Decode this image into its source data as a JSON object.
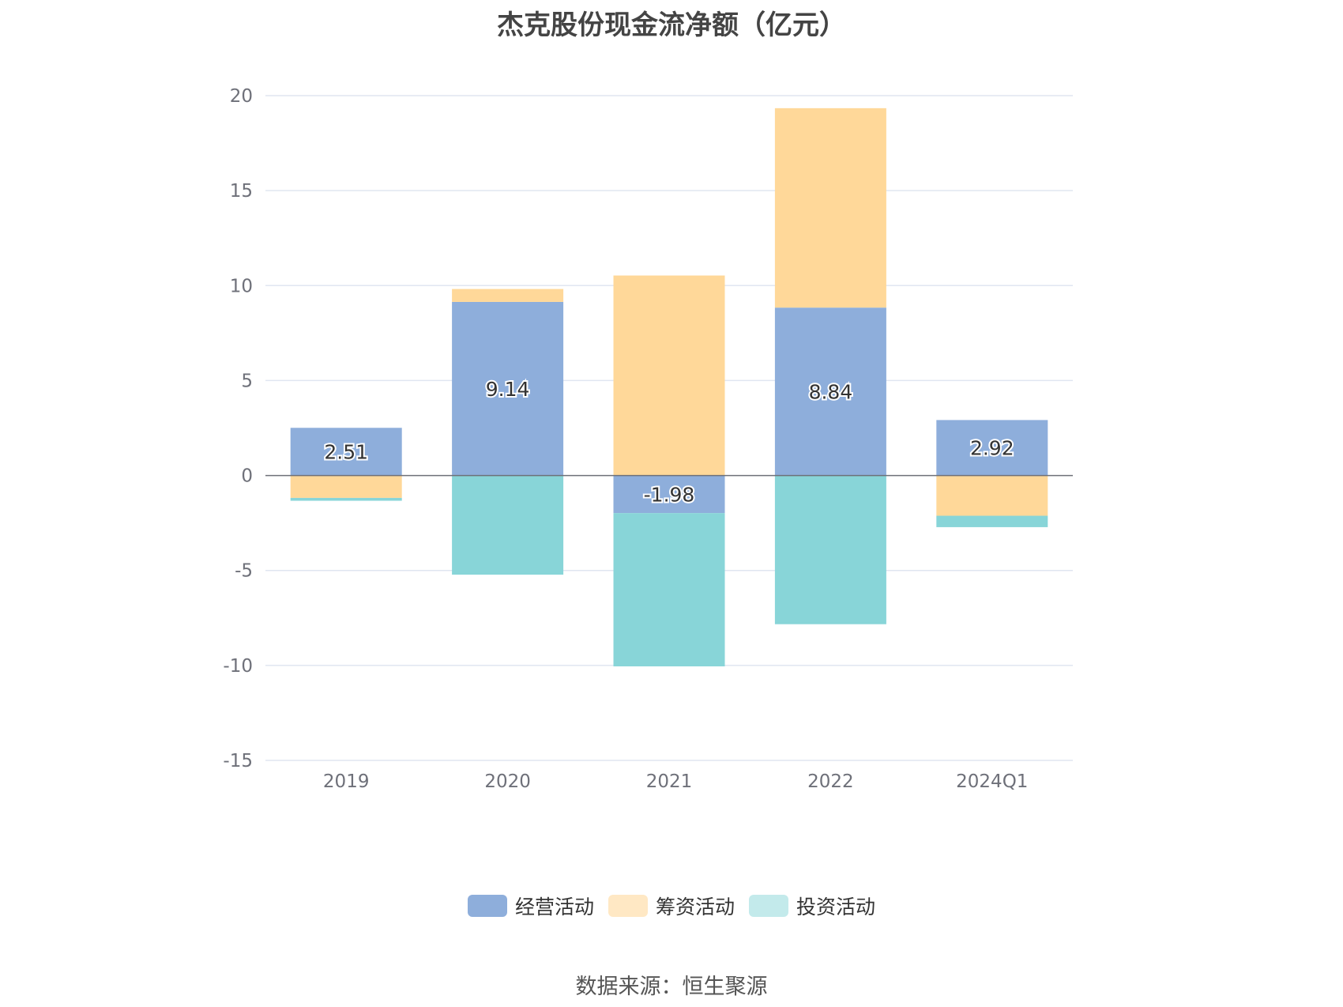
{
  "chart_data": {
    "type": "bar",
    "stacked": true,
    "title": "杰克股份现金流净额（亿元）",
    "categories": [
      "2019",
      "2020",
      "2021",
      "2022",
      "2024Q1"
    ],
    "ylim": [
      -15,
      20
    ],
    "yticks": [
      20,
      15,
      10,
      5,
      0,
      -5,
      -10,
      -15
    ],
    "grid": true,
    "legend_position": "bottom",
    "series": [
      {
        "name": "经营活动",
        "color": "#8eaedb",
        "values": [
          2.51,
          9.14,
          -1.98,
          8.84,
          2.92
        ],
        "labels": [
          "2.51",
          "9.14",
          "-1.98",
          "8.84",
          "2.92"
        ]
      },
      {
        "name": "筹资活动",
        "color": "#ffd899",
        "values": [
          -1.18,
          0.68,
          10.53,
          10.5,
          -2.12
        ],
        "labels": []
      },
      {
        "name": "投资活动",
        "color": "#88d5d8",
        "values": [
          -0.15,
          -5.22,
          -8.07,
          -7.83,
          -0.6
        ],
        "labels": []
      }
    ],
    "legend": [
      {
        "name": "经营活动",
        "color": "#8eaedb"
      },
      {
        "name": "筹资活动",
        "color": "#ffe8c4"
      },
      {
        "name": "投资活动",
        "color": "#c3eaeb"
      }
    ]
  },
  "source": "数据来源：恒生聚源"
}
